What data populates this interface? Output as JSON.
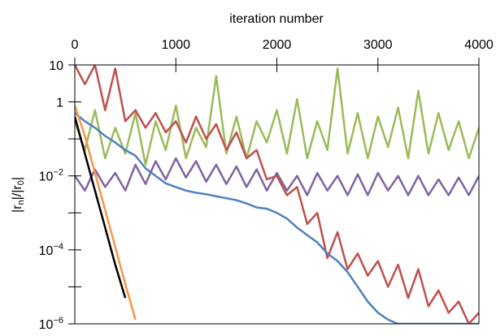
{
  "chart_data": {
    "type": "line",
    "xlabel": "iteration number",
    "ylabel": "|rn|/|r0|",
    "log_y": true,
    "x": [
      0,
      100,
      200,
      300,
      400,
      500,
      600,
      700,
      800,
      900,
      1000,
      1100,
      1200,
      1300,
      1400,
      1500,
      1600,
      1700,
      1800,
      1900,
      2000,
      2100,
      2200,
      2300,
      2400,
      2500,
      2600,
      2700,
      2800,
      2900,
      3000,
      3100,
      3200,
      3300,
      3400,
      3500,
      3600,
      3700,
      3800,
      3900,
      4000
    ],
    "xlim": [
      0,
      4000
    ],
    "xticks": [
      0,
      1000,
      2000,
      3000,
      4000
    ],
    "ylim": [
      1e-06,
      10
    ],
    "yticks": [
      10,
      1,
      {
        "value": 0.01,
        "label": "10−2"
      },
      {
        "value": 0.0001,
        "label": "10−4"
      },
      {
        "value": 1e-06,
        "label": "10−6"
      }
    ],
    "yticks_minor": [
      0.1,
      0.001,
      1e-05
    ],
    "series": [
      {
        "color": "#9bbb59",
        "values": [
          0.3,
          0.05,
          0.6,
          0.03,
          0.2,
          0.04,
          0.5,
          0.02,
          0.3,
          0.05,
          0.8,
          0.03,
          0.2,
          0.06,
          5,
          0.04,
          0.4,
          0.03,
          0.3,
          0.08,
          0.6,
          0.04,
          1.2,
          0.03,
          0.3,
          0.05,
          8,
          0.04,
          0.5,
          0.03,
          0.4,
          0.06,
          0.7,
          0.03,
          2,
          0.04,
          0.5,
          0.05,
          0.3,
          0.03,
          0.2
        ]
      },
      {
        "color": "#8064a2",
        "values": [
          0.01,
          0.004,
          0.015,
          0.005,
          0.012,
          0.004,
          0.02,
          0.006,
          0.025,
          0.008,
          0.03,
          0.009,
          0.025,
          0.007,
          0.02,
          0.006,
          0.018,
          0.005,
          0.015,
          0.004,
          0.012,
          0.004,
          0.01,
          0.003,
          0.012,
          0.004,
          0.01,
          0.003,
          0.011,
          0.003,
          0.012,
          0.004,
          0.01,
          0.003,
          0.01,
          0.003,
          0.008,
          0.003,
          0.009,
          0.003,
          0.01
        ]
      },
      {
        "color": "#c0504d",
        "values": [
          10,
          3,
          10,
          0.6,
          8,
          0.3,
          0.6,
          0.2,
          0.5,
          0.15,
          0.3,
          0.08,
          0.4,
          0.1,
          0.25,
          0.05,
          0.15,
          0.03,
          0.05,
          0.008,
          0.01,
          0.003,
          0.005,
          0.0005,
          0.001,
          6e-05,
          0.0003,
          3e-05,
          8e-05,
          2e-05,
          5e-05,
          1e-05,
          4e-05,
          5e-06,
          3e-05,
          3e-06,
          8e-06,
          2e-06,
          4e-06,
          1e-06,
          2e-06
        ]
      },
      {
        "color": "#4f81bd",
        "values": [
          0.5,
          0.3,
          0.2,
          0.12,
          0.08,
          0.05,
          0.035,
          0.016,
          0.01,
          0.0063,
          0.005,
          0.004,
          0.0035,
          0.0032,
          0.0028,
          0.0025,
          0.0022,
          0.0018,
          0.0014,
          0.0013,
          0.001,
          0.0007,
          0.0004,
          0.00025,
          0.00016,
          8e-05,
          5e-05,
          2.5e-05,
          1e-05,
          4e-06,
          2e-06,
          1.3e-06,
          1e-06,
          1e-06,
          1e-06,
          1e-06,
          1e-06,
          1e-06,
          1e-06,
          1e-06,
          1e-06
        ]
      },
      {
        "color": "#f79646",
        "values": [
          0.8,
          0.12,
          0.012,
          0.0012,
          0.00012,
          1.2e-05,
          1.3e-06,
          null,
          null,
          null,
          null,
          null,
          null,
          null,
          null,
          null,
          null,
          null,
          null,
          null,
          null,
          null,
          null,
          null,
          null,
          null,
          null,
          null,
          null,
          null,
          null,
          null,
          null,
          null,
          null,
          null,
          null,
          null,
          null,
          null,
          null
        ]
      },
      {
        "color": "#000000",
        "values": [
          0.4,
          0.04,
          0.004,
          0.0004,
          4e-05,
          5e-06,
          null,
          null,
          null,
          null,
          null,
          null,
          null,
          null,
          null,
          null,
          null,
          null,
          null,
          null,
          null,
          null,
          null,
          null,
          null,
          null,
          null,
          null,
          null,
          null,
          null,
          null,
          null,
          null,
          null,
          null,
          null,
          null,
          null,
          null,
          null
        ]
      }
    ]
  }
}
